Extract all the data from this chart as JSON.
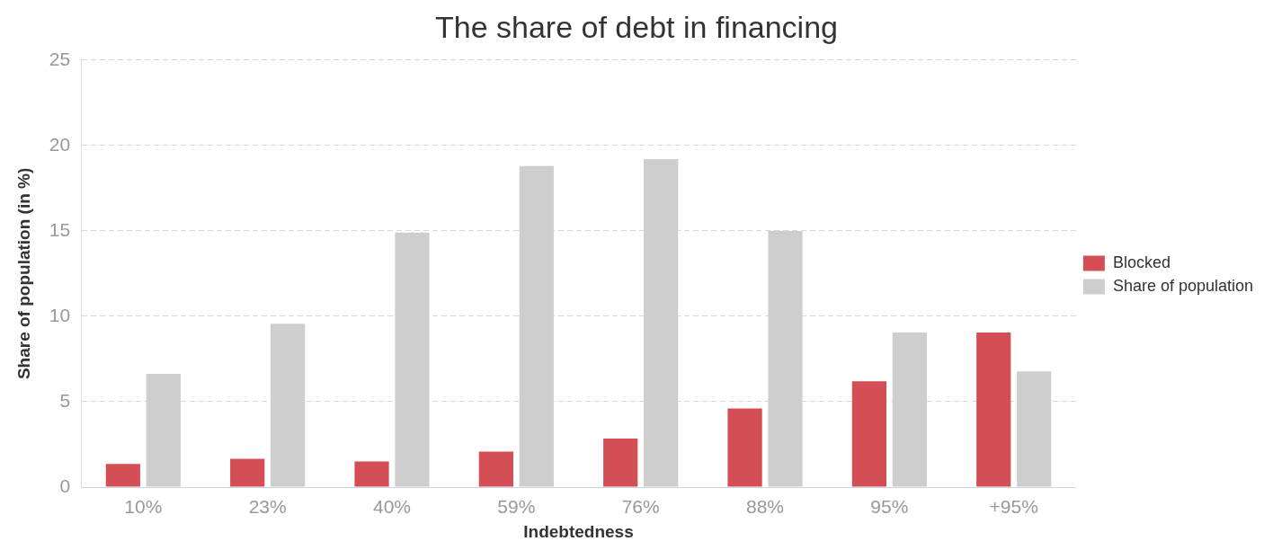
{
  "chart_data": {
    "type": "bar",
    "title": "The share of debt in financing",
    "xlabel": "Indebtedness",
    "ylabel": "Share of population (in %)",
    "categories": [
      "10%",
      "23%",
      "40%",
      "59%",
      "76%",
      "88%",
      "95%",
      "+95%"
    ],
    "series": [
      {
        "name": "Blocked",
        "color": "#d44f55",
        "values": [
          1.36,
          1.66,
          1.5,
          2.08,
          2.84,
          4.6,
          6.2,
          9.05
        ]
      },
      {
        "name": "Share of population",
        "color": "#cecece",
        "values": [
          6.63,
          9.56,
          14.9,
          18.8,
          19.2,
          15.0,
          9.05,
          6.78
        ]
      }
    ],
    "ylim": [
      0,
      25
    ],
    "yticks": [
      0,
      5,
      10,
      15,
      20,
      25
    ],
    "grid": "y",
    "legend": "right"
  }
}
